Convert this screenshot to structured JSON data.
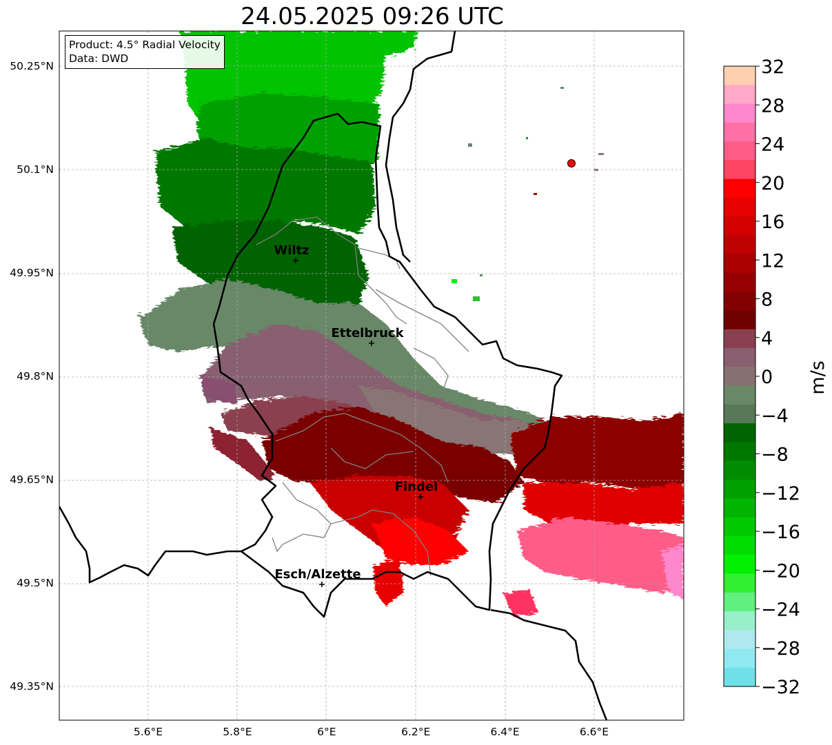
{
  "title": "24.05.2025 09:26 UTC",
  "info": {
    "product": "Product: 4.5° Radial Velocity",
    "data_source": "Data: DWD"
  },
  "map": {
    "lon_range": [
      5.4,
      6.8
    ],
    "lat_range": [
      49.3,
      50.3
    ],
    "lon_ticks": [
      "5.6°E",
      "5.8°E",
      "6°E",
      "6.2°E",
      "6.4°E",
      "6.6°E"
    ],
    "lat_ticks": [
      "50.25°N",
      "50.1°N",
      "49.95°N",
      "49.8°N",
      "49.65°N",
      "49.5°N",
      "49.35°N"
    ],
    "grid": true,
    "cities": [
      {
        "name": "Wiltz",
        "lon": 5.93,
        "lat": 49.97
      },
      {
        "name": "Ettelbruck",
        "lon": 6.1,
        "lat": 49.85
      },
      {
        "name": "Findel",
        "lon": 6.21,
        "lat": 49.63
      },
      {
        "name": "Esch/Alzette",
        "lon": 5.99,
        "lat": 49.5
      }
    ],
    "radar_site_color": "#ff0000"
  },
  "colorbar": {
    "label": "m/s",
    "vmin": -32,
    "vmax": 32,
    "tick_labels": [
      "32",
      "28",
      "24",
      "20",
      "16",
      "12",
      "8",
      "4",
      "0",
      "−4",
      "−8",
      "−12",
      "−16",
      "−20",
      "−24",
      "−28",
      "−32"
    ],
    "colors_top_to_bottom": [
      "#ffd0b0",
      "#ffa8c8",
      "#ff88cc",
      "#ff70a8",
      "#ff5c88",
      "#ff4464",
      "#ff0000",
      "#e60000",
      "#d20000",
      "#be0000",
      "#aa0000",
      "#960000",
      "#820000",
      "#6e0000",
      "#884050",
      "#886070",
      "#887070",
      "#688868",
      "#587858",
      "#006400",
      "#007800",
      "#008c00",
      "#00a000",
      "#00b400",
      "#00c800",
      "#00dc00",
      "#00f000",
      "#30f030",
      "#60f080",
      "#98f0c8",
      "#b0e8f0",
      "#90e8f0",
      "#70e0e8"
    ]
  }
}
